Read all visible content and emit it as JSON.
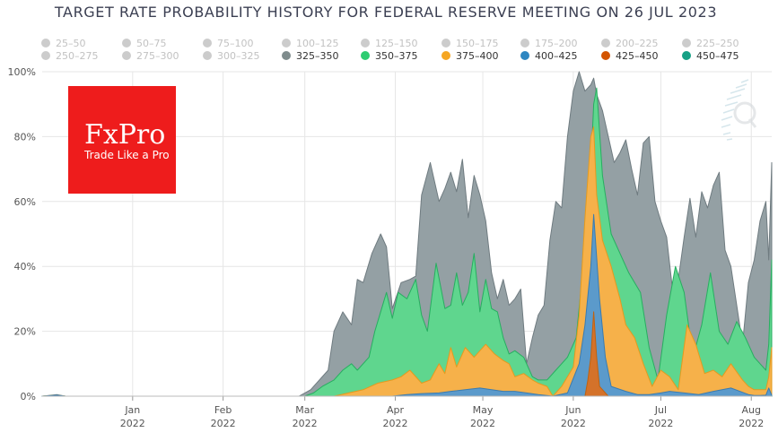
{
  "chart_data": {
    "type": "area",
    "title": "TARGET RATE PROBABILITY HISTORY FOR FEDERAL RESERVE MEETING ON 26 JUL 2023",
    "ylim": [
      0,
      100
    ],
    "y_ticks": [
      "0%",
      "20%",
      "40%",
      "60%",
      "80%",
      "100%"
    ],
    "x_ticks": [
      {
        "month": "Jan",
        "year": "2022",
        "day": 31
      },
      {
        "month": "Feb",
        "year": "2022",
        "day": 62
      },
      {
        "month": "Mar",
        "year": "2022",
        "day": 90
      },
      {
        "month": "Apr",
        "year": "2022",
        "day": 121
      },
      {
        "month": "May",
        "year": "2022",
        "day": 151
      },
      {
        "month": "Jun",
        "year": "2022",
        "day": 182
      },
      {
        "month": "Jul",
        "year": "2022",
        "day": 212
      },
      {
        "month": "Aug",
        "year": "2022",
        "day": 243
      }
    ],
    "x_range": [
      0,
      250
    ],
    "legend": [
      {
        "label": "25–50",
        "color": "#cccccc",
        "active": false
      },
      {
        "label": "50–75",
        "color": "#cccccc",
        "active": false
      },
      {
        "label": "75–100",
        "color": "#cccccc",
        "active": false
      },
      {
        "label": "100–125",
        "color": "#cccccc",
        "active": false
      },
      {
        "label": "125–150",
        "color": "#cccccc",
        "active": false
      },
      {
        "label": "150–175",
        "color": "#cccccc",
        "active": false
      },
      {
        "label": "175–200",
        "color": "#cccccc",
        "active": false
      },
      {
        "label": "200–225",
        "color": "#cccccc",
        "active": false
      },
      {
        "label": "225–250",
        "color": "#cccccc",
        "active": false
      },
      {
        "label": "250–275",
        "color": "#cccccc",
        "active": false
      },
      {
        "label": "275–300",
        "color": "#cccccc",
        "active": false
      },
      {
        "label": "300–325",
        "color": "#cccccc",
        "active": false
      },
      {
        "label": "325–350",
        "color": "#7f8c8d",
        "active": true
      },
      {
        "label": "350–375",
        "color": "#2ecc71",
        "active": true
      },
      {
        "label": "375–400",
        "color": "#f5a623",
        "active": true
      },
      {
        "label": "400–425",
        "color": "#2e86c1",
        "active": true
      },
      {
        "label": "425–450",
        "color": "#d35400",
        "active": true
      },
      {
        "label": "450–475",
        "color": "#16a085",
        "active": true
      }
    ],
    "series": [
      {
        "name": "450–475",
        "color": "#16a085",
        "fill": "#16a085",
        "x": [
          150,
          170,
          181,
          182,
          183,
          190,
          200,
          250
        ],
        "values": [
          0,
          0,
          0,
          0,
          0,
          0,
          0,
          0
        ]
      },
      {
        "name": "425–450",
        "color": "#c0620f",
        "fill": "#d4722a",
        "x": [
          180,
          186,
          187,
          188,
          189,
          190,
          191,
          194,
          250
        ],
        "values": [
          0,
          0,
          5,
          12,
          26,
          12,
          3,
          0,
          0
        ]
      },
      {
        "name": "400–425",
        "color": "#3a7bb0",
        "fill": "#5b9acb",
        "x": [
          0,
          5,
          8,
          120,
          125,
          130,
          136,
          140,
          145,
          150,
          154,
          158,
          162,
          166,
          170,
          175,
          180,
          184,
          186,
          188,
          189,
          191,
          193,
          195,
          200,
          204,
          208,
          212,
          215,
          220,
          225,
          230,
          233,
          236,
          240,
          242,
          244,
          246,
          248,
          249,
          250
        ],
        "values": [
          0,
          0.3,
          0,
          0,
          0.5,
          0.8,
          1,
          1.5,
          2,
          2.5,
          2,
          1.5,
          1.5,
          1,
          0.5,
          0,
          1,
          10,
          22,
          40,
          56,
          30,
          12,
          3,
          1.5,
          0.5,
          0.5,
          1,
          1.5,
          1,
          0.5,
          1.5,
          2,
          2.5,
          1.2,
          0.5,
          0.2,
          0.2,
          0.3,
          2.5,
          0.3
        ]
      },
      {
        "name": "375–400",
        "color": "#e39a1f",
        "fill": "#f6b14a",
        "x": [
          0,
          5,
          8,
          88,
          100,
          110,
          115,
          120,
          123,
          126,
          130,
          133,
          136,
          138,
          140,
          142,
          145,
          148,
          150,
          152,
          155,
          158,
          160,
          162,
          165,
          168,
          170,
          173,
          175,
          178,
          180,
          182,
          184,
          186,
          188,
          189,
          190,
          192,
          195,
          198,
          200,
          203,
          206,
          209,
          212,
          215,
          218,
          221,
          224,
          227,
          230,
          233,
          236,
          240,
          242,
          244,
          246,
          248,
          249,
          250
        ],
        "values": [
          0,
          0.3,
          0,
          0,
          0,
          2,
          4,
          5,
          6,
          8,
          4,
          5,
          10,
          7,
          15,
          9,
          15,
          12,
          14,
          16,
          13,
          11,
          10,
          6,
          7,
          5,
          4,
          3,
          0,
          3,
          6,
          9,
          25,
          55,
          80,
          83,
          62,
          48,
          40,
          30,
          22,
          18,
          10,
          3,
          8,
          6,
          2,
          22,
          16,
          7,
          8,
          6,
          10,
          5,
          3,
          2,
          2,
          2,
          6,
          15
        ]
      },
      {
        "name": "350–375",
        "color": "#27ae60",
        "fill": "#5fd68e",
        "x": [
          0,
          5,
          8,
          88,
          90,
          93,
          96,
          100,
          103,
          106,
          108,
          112,
          114,
          118,
          120,
          122,
          125,
          128,
          130,
          132,
          135,
          138,
          140,
          142,
          144,
          146,
          148,
          150,
          152,
          154,
          156,
          158,
          160,
          162,
          165,
          168,
          170,
          173,
          176,
          180,
          183,
          186,
          188,
          189,
          190,
          192,
          195,
          198,
          201,
          205,
          208,
          211,
          214,
          217,
          220,
          223,
          226,
          229,
          232,
          235,
          238,
          241,
          244,
          246,
          248,
          249,
          250
        ],
        "values": [
          0,
          0.3,
          0,
          0,
          0,
          1,
          3,
          5,
          8,
          10,
          8,
          12,
          20,
          32,
          24,
          32,
          30,
          36,
          25,
          20,
          41,
          27,
          28,
          38,
          28,
          32,
          44,
          26,
          36,
          27,
          26,
          18,
          13,
          14,
          12,
          6,
          5,
          5,
          8,
          12,
          18,
          45,
          70,
          90,
          95,
          68,
          50,
          44,
          38,
          32,
          15,
          5,
          25,
          40,
          32,
          12,
          22,
          38,
          20,
          16,
          23,
          18,
          12,
          10,
          8,
          16,
          42
        ]
      },
      {
        "name": "325–350",
        "color": "#6f7b80",
        "fill": "#94a0a4",
        "x": [
          0,
          5,
          8,
          88,
          92,
          95,
          98,
          100,
          103,
          106,
          108,
          110,
          113,
          116,
          118,
          120,
          123,
          126,
          128,
          130,
          133,
          136,
          138,
          140,
          142,
          144,
          146,
          148,
          150,
          152,
          154,
          156,
          158,
          160,
          162,
          164,
          166,
          168,
          170,
          172,
          174,
          176,
          178,
          180,
          182,
          184,
          186,
          188,
          189,
          190,
          192,
          194,
          196,
          198,
          200,
          202,
          204,
          206,
          208,
          210,
          212,
          214,
          216,
          218,
          220,
          222,
          224,
          226,
          228,
          230,
          232,
          234,
          236,
          238,
          240,
          242,
          244,
          246,
          248,
          249,
          250
        ],
        "values": [
          0,
          0.5,
          0,
          0,
          2,
          5,
          8,
          20,
          26,
          22,
          36,
          35,
          44,
          50,
          46,
          27,
          35,
          36,
          37,
          62,
          72,
          60,
          64,
          69,
          63,
          73,
          55,
          68,
          62,
          54,
          38,
          30,
          36,
          28,
          30,
          33,
          10,
          18,
          25,
          28,
          48,
          60,
          58,
          80,
          94,
          100,
          94,
          96,
          98,
          93,
          88,
          80,
          72,
          75,
          79,
          70,
          62,
          78,
          80,
          60,
          54,
          49,
          33,
          36,
          49,
          61,
          49,
          63,
          58,
          65,
          69,
          45,
          40,
          28,
          16,
          35,
          42,
          54,
          60,
          42,
          72
        ]
      }
    ]
  },
  "brand": {
    "name": "FxPro",
    "tagline": "Trade Like a Pro"
  }
}
